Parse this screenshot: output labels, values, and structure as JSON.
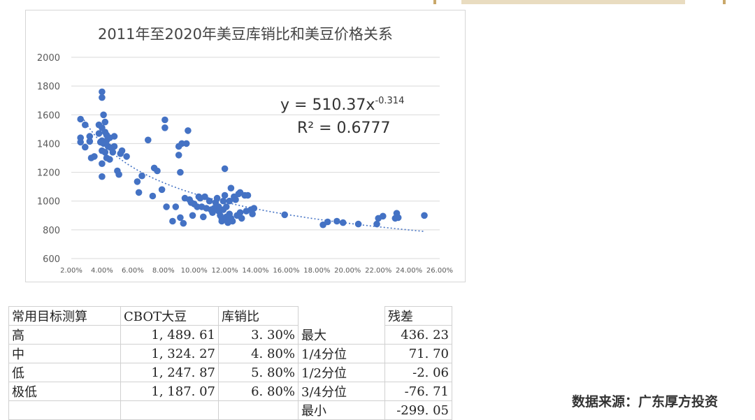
{
  "chart_data": {
    "type": "scatter",
    "title": "2011年至2020年美豆库销比和美豆价格关系",
    "xlabel": "",
    "ylabel": "",
    "xlim": [
      0.02,
      0.26
    ],
    "ylim": [
      600,
      2000
    ],
    "xticks": [
      "2.00%",
      "4.00%",
      "6.00%",
      "8.00%",
      "10.00%",
      "12.00%",
      "14.00%",
      "16.00%",
      "18.00%",
      "20.00%",
      "22.00%",
      "24.00%",
      "26.00%"
    ],
    "yticks": [
      "600",
      "800",
      "1000",
      "1200",
      "1400",
      "1600",
      "1800",
      "2000"
    ],
    "grid": "horizontal",
    "legend": "none",
    "point_color": "#4472c4",
    "trend": {
      "type": "power",
      "a": 510.37,
      "b": -0.314,
      "x_range": [
        0.027,
        0.25
      ],
      "equation_text": "y = 510.37x",
      "exponent_text": "-0.314",
      "r2_text": "R² = 0.6777"
    },
    "points": [
      [
        0.026,
        1570
      ],
      [
        0.026,
        1440
      ],
      [
        0.026,
        1410
      ],
      [
        0.029,
        1530
      ],
      [
        0.029,
        1375
      ],
      [
        0.032,
        1450
      ],
      [
        0.032,
        1415
      ],
      [
        0.033,
        1300
      ],
      [
        0.035,
        1310
      ],
      [
        0.038,
        1530
      ],
      [
        0.038,
        1470
      ],
      [
        0.039,
        1410
      ],
      [
        0.04,
        1760
      ],
      [
        0.04,
        1720
      ],
      [
        0.04,
        1510
      ],
      [
        0.04,
        1420
      ],
      [
        0.04,
        1350
      ],
      [
        0.04,
        1260
      ],
      [
        0.04,
        1170
      ],
      [
        0.041,
        1600
      ],
      [
        0.041,
        1400
      ],
      [
        0.042,
        1550
      ],
      [
        0.042,
        1480
      ],
      [
        0.042,
        1340
      ],
      [
        0.043,
        1460
      ],
      [
        0.043,
        1420
      ],
      [
        0.043,
        1300
      ],
      [
        0.044,
        1380
      ],
      [
        0.045,
        1440
      ],
      [
        0.045,
        1290
      ],
      [
        0.046,
        1370
      ],
      [
        0.047,
        1340
      ],
      [
        0.048,
        1450
      ],
      [
        0.048,
        1380
      ],
      [
        0.05,
        1210
      ],
      [
        0.051,
        1185
      ],
      [
        0.052,
        1330
      ],
      [
        0.053,
        1350
      ],
      [
        0.056,
        1310
      ],
      [
        0.063,
        1135
      ],
      [
        0.064,
        1060
      ],
      [
        0.066,
        1175
      ],
      [
        0.07,
        1425
      ],
      [
        0.073,
        1035
      ],
      [
        0.074,
        1230
      ],
      [
        0.076,
        1210
      ],
      [
        0.079,
        1080
      ],
      [
        0.081,
        1565
      ],
      [
        0.081,
        1510
      ],
      [
        0.082,
        960
      ],
      [
        0.086,
        860
      ],
      [
        0.088,
        960
      ],
      [
        0.09,
        1380
      ],
      [
        0.09,
        1320
      ],
      [
        0.091,
        1200
      ],
      [
        0.091,
        885
      ],
      [
        0.092,
        1400
      ],
      [
        0.093,
        845
      ],
      [
        0.094,
        1020
      ],
      [
        0.095,
        1400
      ],
      [
        0.096,
        1490
      ],
      [
        0.097,
        1010
      ],
      [
        0.098,
        990
      ],
      [
        0.099,
        900
      ],
      [
        0.1,
        980
      ],
      [
        0.102,
        960
      ],
      [
        0.103,
        1030
      ],
      [
        0.104,
        1020
      ],
      [
        0.105,
        960
      ],
      [
        0.106,
        890
      ],
      [
        0.107,
        1030
      ],
      [
        0.108,
        950
      ],
      [
        0.11,
        1000
      ],
      [
        0.111,
        940
      ],
      [
        0.112,
        920
      ],
      [
        0.113,
        950
      ],
      [
        0.114,
        990
      ],
      [
        0.115,
        1020
      ],
      [
        0.116,
        960
      ],
      [
        0.116,
        930
      ],
      [
        0.117,
        900
      ],
      [
        0.118,
        880
      ],
      [
        0.118,
        860
      ],
      [
        0.119,
        1000
      ],
      [
        0.119,
        940
      ],
      [
        0.12,
        1225
      ],
      [
        0.12,
        1040
      ],
      [
        0.121,
        960
      ],
      [
        0.121,
        890
      ],
      [
        0.122,
        870
      ],
      [
        0.122,
        850
      ],
      [
        0.123,
        1000
      ],
      [
        0.123,
        910
      ],
      [
        0.124,
        1090
      ],
      [
        0.124,
        880
      ],
      [
        0.125,
        860
      ],
      [
        0.126,
        1030
      ],
      [
        0.127,
        1010
      ],
      [
        0.128,
        900
      ],
      [
        0.129,
        1050
      ],
      [
        0.13,
        1060
      ],
      [
        0.13,
        920
      ],
      [
        0.131,
        880
      ],
      [
        0.133,
        1040
      ],
      [
        0.134,
        930
      ],
      [
        0.135,
        1040
      ],
      [
        0.137,
        940
      ],
      [
        0.138,
        910
      ],
      [
        0.139,
        950
      ],
      [
        0.159,
        905
      ],
      [
        0.184,
        835
      ],
      [
        0.187,
        855
      ],
      [
        0.193,
        860
      ],
      [
        0.197,
        850
      ],
      [
        0.207,
        840
      ],
      [
        0.219,
        840
      ],
      [
        0.22,
        880
      ],
      [
        0.223,
        895
      ],
      [
        0.231,
        880
      ],
      [
        0.232,
        915
      ],
      [
        0.233,
        885
      ],
      [
        0.25,
        900
      ]
    ]
  },
  "table": {
    "header": [
      "常用目标测算",
      "CBOT大豆",
      "库销比",
      "",
      "残差"
    ],
    "rows": [
      [
        "高",
        "1, 489. 61",
        "3. 30%",
        "最大",
        "436. 23"
      ],
      [
        "中",
        "1, 324. 27",
        "4. 80%",
        "1/4分位",
        "71. 70"
      ],
      [
        "低",
        "1, 247. 87",
        "5. 80%",
        "1/2分位",
        "-2. 06"
      ],
      [
        "极低",
        "1, 187. 07",
        "6. 80%",
        "3/4分位",
        "-76. 71"
      ],
      [
        "",
        "",
        "",
        "最小",
        "-299. 05"
      ]
    ]
  },
  "source": "数据来源：广东厚方投资"
}
